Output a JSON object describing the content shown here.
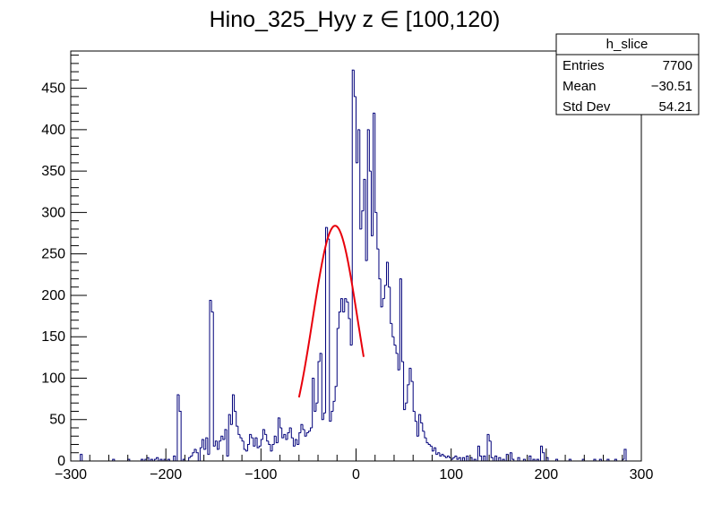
{
  "chart_data": {
    "type": "histogram",
    "title": "Hino_325_Hyy z  ∈ [100,120)",
    "xlabel": "",
    "ylabel": "",
    "xlim": [
      -300,
      300
    ],
    "ylim": [
      0,
      495
    ],
    "x_ticks": [
      -300,
      -200,
      -100,
      0,
      100,
      200,
      300
    ],
    "x_tick_labels": [
      "−300",
      "−200",
      "−100",
      "0",
      "100",
      "200",
      "300"
    ],
    "y_ticks": [
      0,
      50,
      100,
      150,
      200,
      250,
      300,
      350,
      400,
      450
    ],
    "y_tick_labels": [
      "0",
      "50",
      "100",
      "150",
      "200",
      "250",
      "300",
      "350",
      "400",
      "450"
    ],
    "grid": false,
    "line_color": "#00007a",
    "fit_color": "#e8000b",
    "histogram": {
      "bin_width": 2,
      "bins": [
        [
          -290,
          8
        ],
        [
          -256,
          2
        ],
        [
          -240,
          2
        ],
        [
          -226,
          2
        ],
        [
          -222,
          2
        ],
        [
          -220,
          4
        ],
        [
          -216,
          2
        ],
        [
          -212,
          2
        ],
        [
          -210,
          4
        ],
        [
          -206,
          2
        ],
        [
          -202,
          2
        ],
        [
          -198,
          2
        ],
        [
          -192,
          6
        ],
        [
          -188,
          80
        ],
        [
          -186,
          60
        ],
        [
          -182,
          2
        ],
        [
          -176,
          4
        ],
        [
          -174,
          6
        ],
        [
          -172,
          10
        ],
        [
          -170,
          14
        ],
        [
          -168,
          10
        ],
        [
          -164,
          16
        ],
        [
          -162,
          26
        ],
        [
          -160,
          14
        ],
        [
          -158,
          28
        ],
        [
          -156,
          8
        ],
        [
          -154,
          194
        ],
        [
          -152,
          180
        ],
        [
          -150,
          18
        ],
        [
          -148,
          24
        ],
        [
          -146,
          14
        ],
        [
          -144,
          24
        ],
        [
          -142,
          30
        ],
        [
          -140,
          26
        ],
        [
          -138,
          38
        ],
        [
          -136,
          6
        ],
        [
          -134,
          56
        ],
        [
          -132,
          44
        ],
        [
          -130,
          80
        ],
        [
          -128,
          60
        ],
        [
          -126,
          42
        ],
        [
          -124,
          32
        ],
        [
          -122,
          28
        ],
        [
          -120,
          24
        ],
        [
          -118,
          14
        ],
        [
          -116,
          12
        ],
        [
          -114,
          20
        ],
        [
          -112,
          32
        ],
        [
          -110,
          28
        ],
        [
          -108,
          18
        ],
        [
          -106,
          28
        ],
        [
          -104,
          16
        ],
        [
          -102,
          18
        ],
        [
          -100,
          26
        ],
        [
          -98,
          38
        ],
        [
          -96,
          32
        ],
        [
          -94,
          24
        ],
        [
          -92,
          20
        ],
        [
          -90,
          12
        ],
        [
          -88,
          20
        ],
        [
          -86,
          30
        ],
        [
          -84,
          22
        ],
        [
          -82,
          52
        ],
        [
          -80,
          40
        ],
        [
          -78,
          28
        ],
        [
          -76,
          32
        ],
        [
          -74,
          26
        ],
        [
          -72,
          34
        ],
        [
          -70,
          40
        ],
        [
          -68,
          28
        ],
        [
          -66,
          18
        ],
        [
          -64,
          26
        ],
        [
          -62,
          20
        ],
        [
          -60,
          34
        ],
        [
          -58,
          44
        ],
        [
          -56,
          38
        ],
        [
          -54,
          30
        ],
        [
          -52,
          34
        ],
        [
          -50,
          36
        ],
        [
          -48,
          40
        ],
        [
          -46,
          100
        ],
        [
          -44,
          60
        ],
        [
          -42,
          70
        ],
        [
          -40,
          120
        ],
        [
          -38,
          130
        ],
        [
          -36,
          50
        ],
        [
          -34,
          58
        ],
        [
          -32,
          282
        ],
        [
          -30,
          268
        ],
        [
          -28,
          48
        ],
        [
          -26,
          60
        ],
        [
          -24,
          72
        ],
        [
          -22,
          90
        ],
        [
          -20,
          160
        ],
        [
          -18,
          180
        ],
        [
          -16,
          196
        ],
        [
          -14,
          180
        ],
        [
          -12,
          196
        ],
        [
          -10,
          192
        ],
        [
          -8,
          172
        ],
        [
          -6,
          140
        ],
        [
          -4,
          472
        ],
        [
          -2,
          440
        ],
        [
          0,
          360
        ],
        [
          2,
          400
        ],
        [
          4,
          280
        ],
        [
          6,
          302
        ],
        [
          8,
          340
        ],
        [
          10,
          242
        ],
        [
          12,
          400
        ],
        [
          14,
          350
        ],
        [
          16,
          272
        ],
        [
          18,
          420
        ],
        [
          20,
          300
        ],
        [
          22,
          256
        ],
        [
          24,
          220
        ],
        [
          26,
          186
        ],
        [
          28,
          196
        ],
        [
          30,
          212
        ],
        [
          32,
          240
        ],
        [
          34,
          210
        ],
        [
          36,
          166
        ],
        [
          38,
          150
        ],
        [
          40,
          140
        ],
        [
          42,
          130
        ],
        [
          44,
          110
        ],
        [
          46,
          220
        ],
        [
          48,
          120
        ],
        [
          50,
          62
        ],
        [
          52,
          70
        ],
        [
          54,
          92
        ],
        [
          56,
          112
        ],
        [
          58,
          96
        ],
        [
          60,
          60
        ],
        [
          62,
          48
        ],
        [
          64,
          30
        ],
        [
          66,
          56
        ],
        [
          68,
          46
        ],
        [
          70,
          36
        ],
        [
          72,
          28
        ],
        [
          74,
          22
        ],
        [
          76,
          20
        ],
        [
          78,
          18
        ],
        [
          80,
          12
        ],
        [
          82,
          16
        ],
        [
          84,
          8
        ],
        [
          86,
          10
        ],
        [
          88,
          6
        ],
        [
          90,
          8
        ],
        [
          92,
          6
        ],
        [
          94,
          4
        ],
        [
          96,
          6
        ],
        [
          98,
          4
        ],
        [
          100,
          2
        ],
        [
          102,
          4
        ],
        [
          104,
          6
        ],
        [
          106,
          2
        ],
        [
          108,
          4
        ],
        [
          112,
          4
        ],
        [
          116,
          6
        ],
        [
          120,
          4
        ],
        [
          124,
          2
        ],
        [
          128,
          18
        ],
        [
          130,
          6
        ],
        [
          134,
          6
        ],
        [
          138,
          32
        ],
        [
          140,
          24
        ],
        [
          142,
          4
        ],
        [
          146,
          6
        ],
        [
          150,
          4
        ],
        [
          154,
          2
        ],
        [
          158,
          8
        ],
        [
          162,
          10
        ],
        [
          164,
          2
        ],
        [
          170,
          4
        ],
        [
          176,
          2
        ],
        [
          182,
          6
        ],
        [
          186,
          2
        ],
        [
          190,
          2
        ],
        [
          194,
          18
        ],
        [
          196,
          10
        ],
        [
          200,
          4
        ],
        [
          210,
          2
        ],
        [
          224,
          2
        ],
        [
          238,
          2
        ],
        [
          250,
          2
        ],
        [
          256,
          2
        ],
        [
          264,
          2
        ],
        [
          272,
          2
        ],
        [
          280,
          2
        ],
        [
          282,
          14
        ]
      ]
    },
    "fit": {
      "type": "gaussian",
      "constant": 284,
      "mean": -22,
      "sigma": 23.5,
      "range": [
        -60,
        8
      ]
    },
    "stats_box": {
      "title": "h_slice",
      "rows": [
        {
          "label": "Entries",
          "value": "7700"
        },
        {
          "label": "Mean",
          "value": "−30.51"
        },
        {
          "label": "Std Dev",
          "value": "54.21"
        }
      ]
    }
  }
}
